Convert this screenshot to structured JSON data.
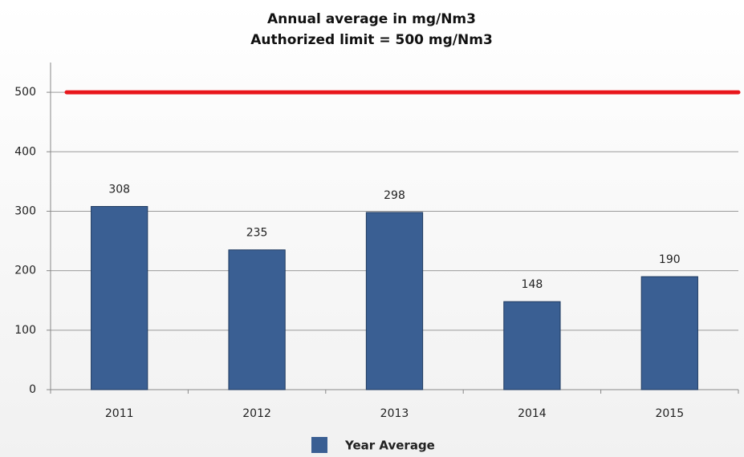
{
  "chart_data": {
    "type": "bar",
    "title": "Annual average in mg/Nm3",
    "subtitle": "Authorized limit = 500 mg/Nm3",
    "categories": [
      "2011",
      "2012",
      "2013",
      "2014",
      "2015"
    ],
    "series": [
      {
        "name": "Year Average",
        "color": "#3a5f93",
        "values": [
          308,
          235,
          298,
          148,
          190
        ]
      }
    ],
    "limit": 500,
    "limit_color": "#e8161b",
    "ylim": [
      0,
      550
    ],
    "yticks": [
      0,
      100,
      200,
      300,
      400,
      500
    ],
    "grid": true,
    "legend": "bottom"
  }
}
